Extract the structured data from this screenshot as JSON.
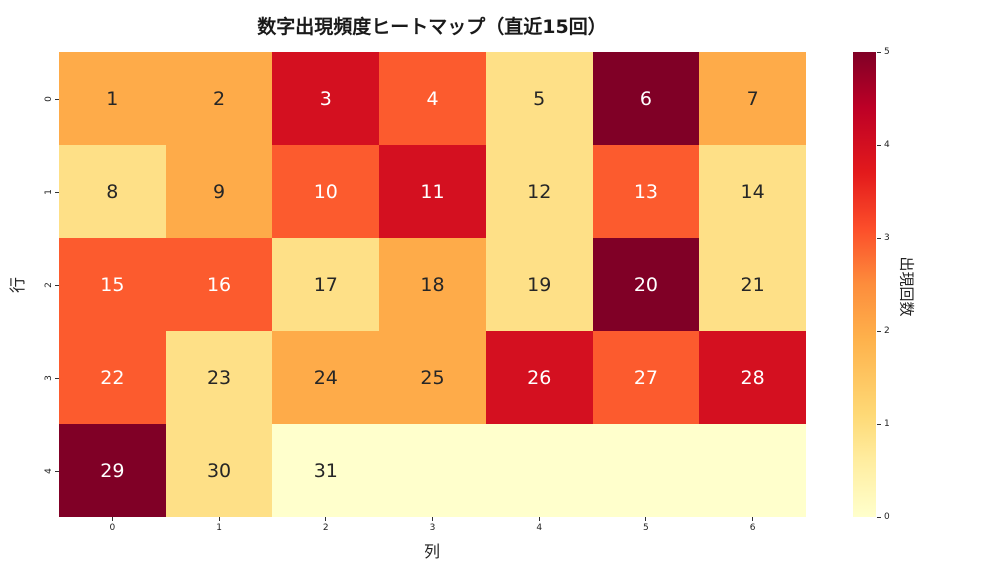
{
  "chart_data": {
    "type": "heatmap",
    "title": "数字出現頻度ヒートマップ（直近15回）",
    "xlabel": "列",
    "ylabel": "行",
    "x_ticks": [
      "0",
      "1",
      "2",
      "3",
      "4",
      "5",
      "6"
    ],
    "y_ticks": [
      "0",
      "1",
      "2",
      "3",
      "4"
    ],
    "colorbar": {
      "label": "出現回数",
      "ticks": [
        "0",
        "1",
        "2",
        "3",
        "4",
        "5"
      ],
      "range": [
        0,
        5
      ],
      "colormap": "YlOrRd"
    },
    "cell_labels": [
      [
        "1",
        "2",
        "3",
        "4",
        "5",
        "6",
        "7"
      ],
      [
        "8",
        "9",
        "10",
        "11",
        "12",
        "13",
        "14"
      ],
      [
        "15",
        "16",
        "17",
        "18",
        "19",
        "20",
        "21"
      ],
      [
        "22",
        "23",
        "24",
        "25",
        "26",
        "27",
        "28"
      ],
      [
        "29",
        "30",
        "31",
        "",
        "",
        "",
        ""
      ]
    ],
    "values": [
      [
        2,
        2,
        4,
        3,
        1,
        5,
        2
      ],
      [
        1,
        2,
        3,
        4,
        1,
        3,
        1
      ],
      [
        3,
        3,
        1,
        2,
        1,
        5,
        1
      ],
      [
        3,
        1,
        2,
        2,
        4,
        3,
        4
      ],
      [
        5,
        1,
        0,
        0,
        0,
        0,
        0
      ]
    ]
  },
  "colors": {
    "0": "#ffffcc",
    "1": "#fee087",
    "2": "#feab49",
    "3": "#fc5b2e",
    "4": "#d41020",
    "5": "#800026"
  }
}
